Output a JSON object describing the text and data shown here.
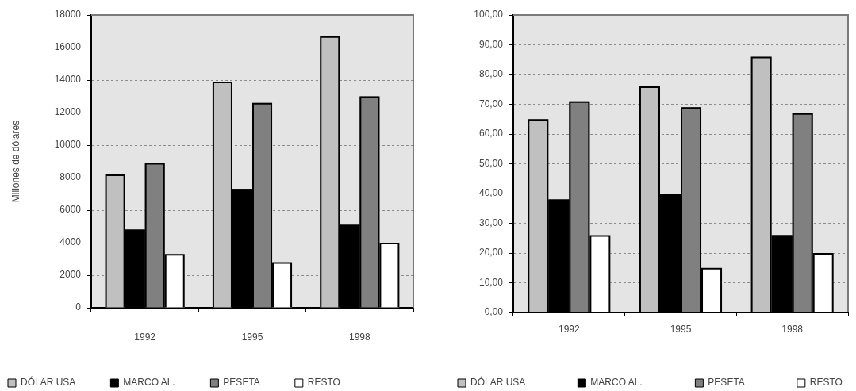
{
  "chart_data": [
    {
      "type": "bar",
      "ylabel": "Millones de dólares",
      "categories": [
        "1992",
        "1995",
        "1998"
      ],
      "series": [
        {
          "name": "DÓLAR USA",
          "color": "#c0c0c0",
          "values": [
            8200,
            13900,
            16700
          ]
        },
        {
          "name": "MARCO AL.",
          "color": "#000000",
          "values": [
            4800,
            7300,
            5100
          ]
        },
        {
          "name": "PESETA",
          "color": "#808080",
          "values": [
            8900,
            12600,
            13000
          ]
        },
        {
          "name": "RESTO",
          "color": "#ffffff",
          "values": [
            3300,
            2800,
            4000
          ]
        }
      ],
      "ylim": [
        0,
        18000
      ],
      "yticks": [
        0,
        2000,
        4000,
        6000,
        8000,
        10000,
        12000,
        14000,
        16000,
        18000
      ],
      "grid": "y",
      "legend": "bottom"
    },
    {
      "type": "bar",
      "categories": [
        "1992",
        "1995",
        "1998"
      ],
      "series": [
        {
          "name": "DÓLAR USA",
          "color": "#c0c0c0",
          "values": [
            65,
            76,
            86
          ]
        },
        {
          "name": "MARCO AL.",
          "color": "#000000",
          "values": [
            38,
            40,
            26
          ]
        },
        {
          "name": "PESETA",
          "color": "#808080",
          "values": [
            71,
            69,
            67
          ]
        },
        {
          "name": "RESTO",
          "color": "#ffffff",
          "values": [
            26,
            15,
            20
          ]
        }
      ],
      "ylim": [
        0,
        100
      ],
      "yticks": [
        {
          "value": 0,
          "label": "0,00"
        },
        {
          "value": 10,
          "label": "10,00"
        },
        {
          "value": 20,
          "label": "20,00"
        },
        {
          "value": 30,
          "label": "30,00"
        },
        {
          "value": 40,
          "label": "40,00"
        },
        {
          "value": 50,
          "label": "50,00"
        },
        {
          "value": 60,
          "label": "60,00"
        },
        {
          "value": 70,
          "label": "70,00"
        },
        {
          "value": 80,
          "label": "80,00"
        },
        {
          "value": 90,
          "label": "90,00"
        },
        {
          "value": 100,
          "label": "100,00"
        }
      ],
      "grid": "y",
      "legend": "bottom"
    }
  ]
}
